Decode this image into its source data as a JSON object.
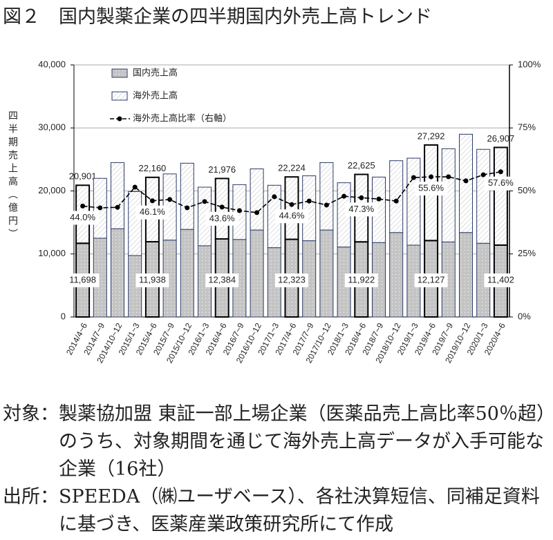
{
  "chart_data": {
    "type": "bar",
    "title": "図２　国内製薬企業の四半期国内外売上高トレンド",
    "y_axis_label": "四半期売上高（億円）",
    "categories": [
      "2014/4~6",
      "2014/7~9",
      "2014/10~12",
      "2015/1~3",
      "2015/4~6",
      "2015/7~9",
      "2015/10~12",
      "2016/1~3",
      "2016/4~6",
      "2016/7~9",
      "2016/10~12",
      "2017/1~3",
      "2017/4~6",
      "2017/7~9",
      "2017/10~12",
      "2018/1~3",
      "2018/4~6",
      "2018/7~9",
      "2018/10~12",
      "2019/1~3",
      "2019/4~6",
      "2019/7~9",
      "2019/10~12",
      "2020/1~3",
      "2020/4~6"
    ],
    "stacked": true,
    "series": [
      {
        "name": "国内売上高",
        "color": "#c4c4c4",
        "values": [
          11698,
          12500,
          14000,
          9750,
          11938,
          12200,
          13900,
          11300,
          12384,
          12300,
          13800,
          11000,
          12323,
          12100,
          13800,
          11100,
          11922,
          11800,
          13400,
          11400,
          12127,
          11900,
          13400,
          11700,
          11402
        ],
        "value_labels": [
          "11,698",
          null,
          null,
          null,
          "11,938",
          null,
          null,
          null,
          "12,384",
          null,
          null,
          null,
          "12,323",
          null,
          null,
          null,
          "11,922",
          null,
          null,
          null,
          "12,127",
          null,
          null,
          null,
          "11,402"
        ]
      },
      {
        "name": "海外売上高",
        "color": "#ffffff",
        "values": [
          9203,
          9500,
          10500,
          10150,
          10222,
          10500,
          10500,
          9300,
          9592,
          8700,
          9700,
          9900,
          9901,
          10300,
          10700,
          10200,
          10703,
          10400,
          11400,
          13800,
          15165,
          14800,
          15600,
          14900,
          15505
        ]
      },
      {
        "name": "海外売上高比率（右軸）",
        "color": "#000000",
        "type": "line",
        "axis": "y2",
        "values": [
          44.0,
          43.3,
          43.5,
          51.5,
          46.1,
          46.6,
          43.3,
          45.8,
          43.6,
          42.2,
          41.4,
          47.7,
          44.6,
          46.0,
          44.4,
          47.9,
          47.3,
          46.8,
          46.0,
          55.3,
          55.6,
          55.6,
          54.0,
          56.4,
          57.6
        ],
        "value_labels": [
          "44.0%",
          null,
          null,
          null,
          "46.1%",
          null,
          null,
          null,
          "43.6%",
          null,
          null,
          null,
          "44.6%",
          null,
          null,
          null,
          "47.3%",
          null,
          null,
          null,
          "55.6%",
          null,
          null,
          null,
          "57.6%"
        ]
      }
    ],
    "total_labels": [
      "20,901",
      null,
      null,
      null,
      "22,160",
      null,
      null,
      null,
      "21,976",
      null,
      null,
      null,
      "22,224",
      null,
      null,
      null,
      "22,625",
      null,
      null,
      null,
      "27,292",
      null,
      null,
      null,
      "26,907"
    ],
    "ylim": [
      0,
      40000
    ],
    "yticks": [
      0,
      {
        "value": 10000,
        "label": "10,000"
      },
      {
        "value": 20000,
        "label": "20,000"
      },
      {
        "value": 30000,
        "label": "30,000"
      },
      {
        "value": 40000,
        "label": "40,000"
      }
    ],
    "y2lim": [
      0,
      100
    ],
    "y2ticks": [
      {
        "value": 0,
        "label": "0%"
      },
      {
        "value": 25,
        "label": "25%"
      },
      {
        "value": 50,
        "label": "50%"
      },
      {
        "value": 75,
        "label": "75%"
      },
      {
        "value": 100,
        "label": "100%"
      }
    ],
    "grid": true,
    "legend": "top-left"
  },
  "notes": [
    {
      "label": "対象：",
      "text": "製薬協加盟 東証一部上場企業（医薬品売上高比率50％超）のうち、対象期間を通じて海外売上高データが入手可能な企業（16社）"
    },
    {
      "label": "出所：",
      "text": "SPEEDA（㈱ユーザベース）、各社決算短信、同補足資料に基づき、医薬産業政策研究所にて作成"
    }
  ]
}
